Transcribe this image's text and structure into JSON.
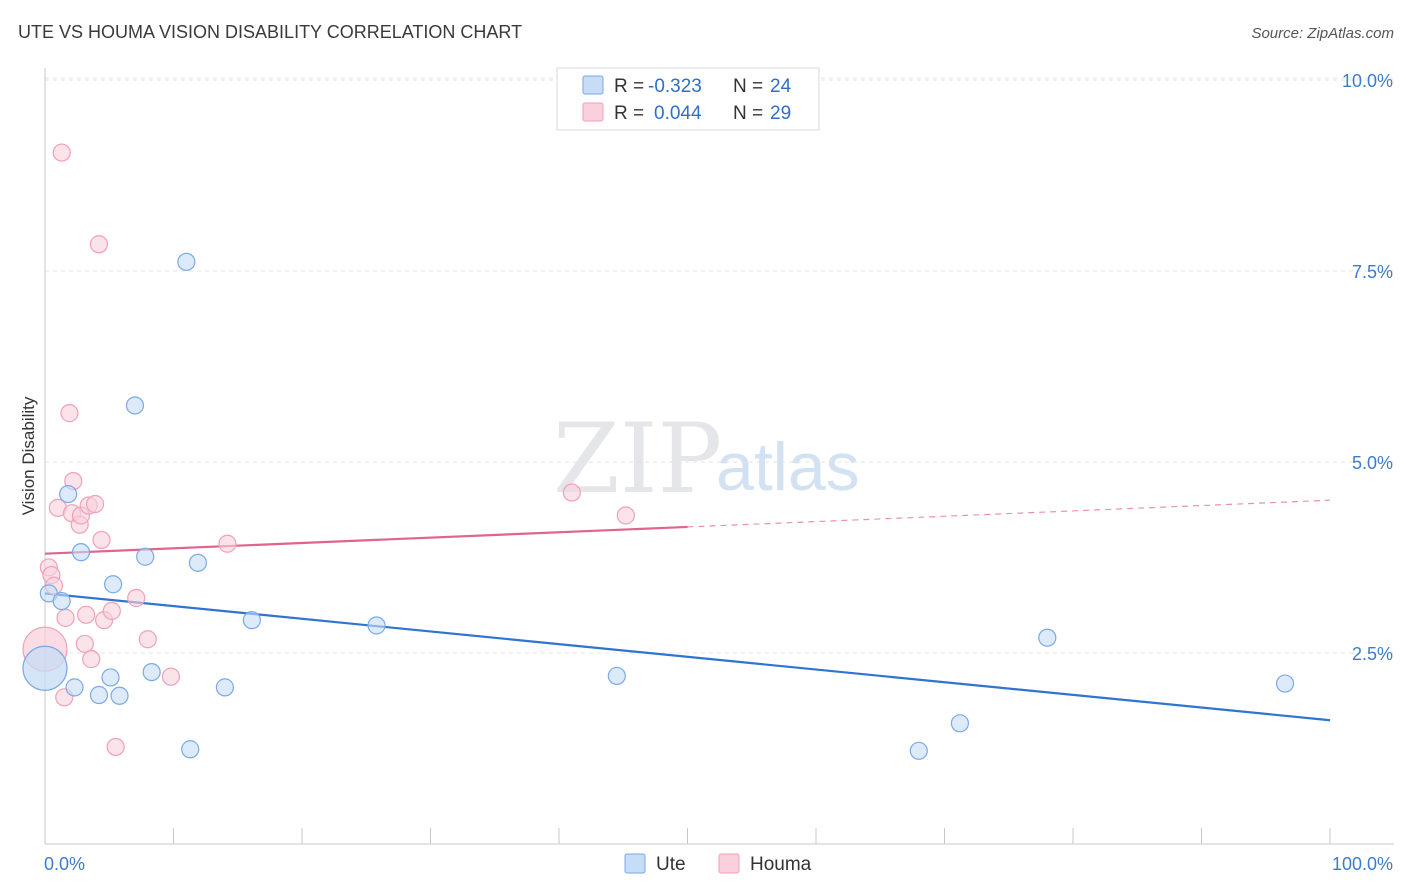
{
  "chart_data": {
    "type": "scatter",
    "title": "UTE VS HOUMA VISION DISABILITY CORRELATION CHART",
    "source": "Source: ZipAtlas.com",
    "xlabel": "",
    "ylabel": "Vision Disability",
    "xlim": [
      0,
      100
    ],
    "ylim": [
      0,
      10.5
    ],
    "x_tick_labels": [
      {
        "value": 0,
        "label": "0.0%"
      },
      {
        "value": 100,
        "label": "100.0%"
      }
    ],
    "y_ticks": [
      {
        "value": 2.5,
        "label": "2.5%"
      },
      {
        "value": 5.0,
        "label": "5.0%"
      },
      {
        "value": 7.5,
        "label": "7.5%"
      },
      {
        "value": 10.0,
        "label": "10.0%"
      }
    ],
    "watermark": {
      "zip": "ZIP",
      "atlas": "atlas"
    },
    "legend": {
      "entries": [
        {
          "r_label": "R =",
          "r_value": "-0.323",
          "n_label": "N =",
          "n_value": "24"
        },
        {
          "r_label": "R =",
          "r_value": "0.044",
          "n_label": "N =",
          "n_value": "29"
        }
      ]
    },
    "series": [
      {
        "name": "Ute",
        "color": "#7aaae6",
        "fill": "#c7dcf6",
        "line_color": "#2f74d0",
        "trend": {
          "x0": 0,
          "y0": 3.28,
          "x1": 100,
          "y1": 1.62,
          "solid_to": 100
        },
        "points": [
          {
            "x": 0.0,
            "y": 2.3,
            "big": true
          },
          {
            "x": 0.3,
            "y": 3.28
          },
          {
            "x": 1.3,
            "y": 3.18
          },
          {
            "x": 1.8,
            "y": 4.58
          },
          {
            "x": 2.3,
            "y": 2.05
          },
          {
            "x": 2.8,
            "y": 3.82
          },
          {
            "x": 4.2,
            "y": 1.95
          },
          {
            "x": 5.1,
            "y": 2.18
          },
          {
            "x": 5.3,
            "y": 3.4
          },
          {
            "x": 5.8,
            "y": 1.94
          },
          {
            "x": 7.0,
            "y": 5.74
          },
          {
            "x": 7.8,
            "y": 3.76
          },
          {
            "x": 8.3,
            "y": 2.25
          },
          {
            "x": 11.0,
            "y": 7.62
          },
          {
            "x": 11.3,
            "y": 1.24
          },
          {
            "x": 11.9,
            "y": 3.68
          },
          {
            "x": 14.0,
            "y": 2.05
          },
          {
            "x": 16.1,
            "y": 2.93
          },
          {
            "x": 25.8,
            "y": 2.86
          },
          {
            "x": 44.5,
            "y": 2.2
          },
          {
            "x": 68.0,
            "y": 1.22
          },
          {
            "x": 71.2,
            "y": 1.58
          },
          {
            "x": 78.0,
            "y": 2.7
          },
          {
            "x": 96.5,
            "y": 2.1
          }
        ]
      },
      {
        "name": "Houma",
        "color": "#f0a0b8",
        "fill": "#f9d0dc",
        "line_color": "#e0648c",
        "trend": {
          "x0": 0,
          "y0": 3.8,
          "x1": 100,
          "y1": 4.5,
          "solid_to": 50
        },
        "points": [
          {
            "x": 0.0,
            "y": 2.55,
            "big": true
          },
          {
            "x": 0.3,
            "y": 3.62
          },
          {
            "x": 0.5,
            "y": 3.52
          },
          {
            "x": 0.7,
            "y": 3.38
          },
          {
            "x": 1.0,
            "y": 4.4
          },
          {
            "x": 1.3,
            "y": 9.05
          },
          {
            "x": 1.5,
            "y": 1.92
          },
          {
            "x": 1.6,
            "y": 2.96
          },
          {
            "x": 1.9,
            "y": 5.64
          },
          {
            "x": 2.1,
            "y": 4.33
          },
          {
            "x": 2.2,
            "y": 4.75
          },
          {
            "x": 2.7,
            "y": 4.18
          },
          {
            "x": 2.8,
            "y": 4.3
          },
          {
            "x": 3.1,
            "y": 2.62
          },
          {
            "x": 3.2,
            "y": 3.0
          },
          {
            "x": 3.4,
            "y": 4.43
          },
          {
            "x": 3.6,
            "y": 2.42
          },
          {
            "x": 3.9,
            "y": 4.45
          },
          {
            "x": 4.2,
            "y": 7.85
          },
          {
            "x": 4.4,
            "y": 3.98
          },
          {
            "x": 4.6,
            "y": 2.93
          },
          {
            "x": 5.2,
            "y": 3.05
          },
          {
            "x": 5.5,
            "y": 1.27
          },
          {
            "x": 7.1,
            "y": 3.22
          },
          {
            "x": 8.0,
            "y": 2.68
          },
          {
            "x": 9.8,
            "y": 2.19
          },
          {
            "x": 14.2,
            "y": 3.93
          },
          {
            "x": 41.0,
            "y": 4.6
          },
          {
            "x": 45.2,
            "y": 4.3
          }
        ]
      }
    ]
  }
}
